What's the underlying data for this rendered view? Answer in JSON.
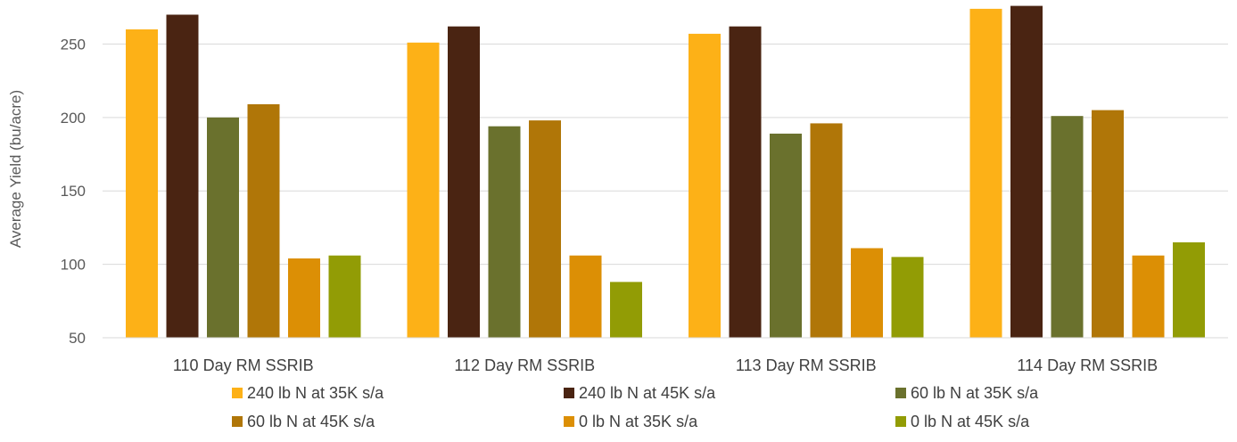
{
  "chart_data": {
    "type": "bar",
    "title": "",
    "xlabel": "",
    "ylabel": "Average Yield (bu/acre)",
    "ylim": [
      50,
      280
    ],
    "yticks": [
      50,
      100,
      150,
      200,
      250
    ],
    "grid": true,
    "legend_position": "bottom",
    "categories": [
      "110 Day RM SSRIB",
      "112 Day RM SSRIB",
      "113 Day RM SSRIB",
      "114 Day RM SSRIB"
    ],
    "series": [
      {
        "name": "240 lb N at 35K s/a",
        "color": "#FDB117",
        "values": [
          260,
          251,
          257,
          274
        ]
      },
      {
        "name": "240 lb N at 45K s/a",
        "color": "#4A2412",
        "values": [
          270,
          262,
          262,
          276
        ]
      },
      {
        "name": "60 lb N at 35K s/a",
        "color": "#6A712D",
        "values": [
          200,
          194,
          189,
          201
        ]
      },
      {
        "name": "60 lb N at 45K s/a",
        "color": "#B07608",
        "values": [
          209,
          198,
          196,
          205
        ]
      },
      {
        "name": "0 lb N at 35K s/a",
        "color": "#DC8F05",
        "values": [
          104,
          106,
          111,
          106
        ]
      },
      {
        "name": "0 lb N at 45K s/a",
        "color": "#929C05",
        "values": [
          106,
          88,
          105,
          115
        ]
      }
    ]
  }
}
